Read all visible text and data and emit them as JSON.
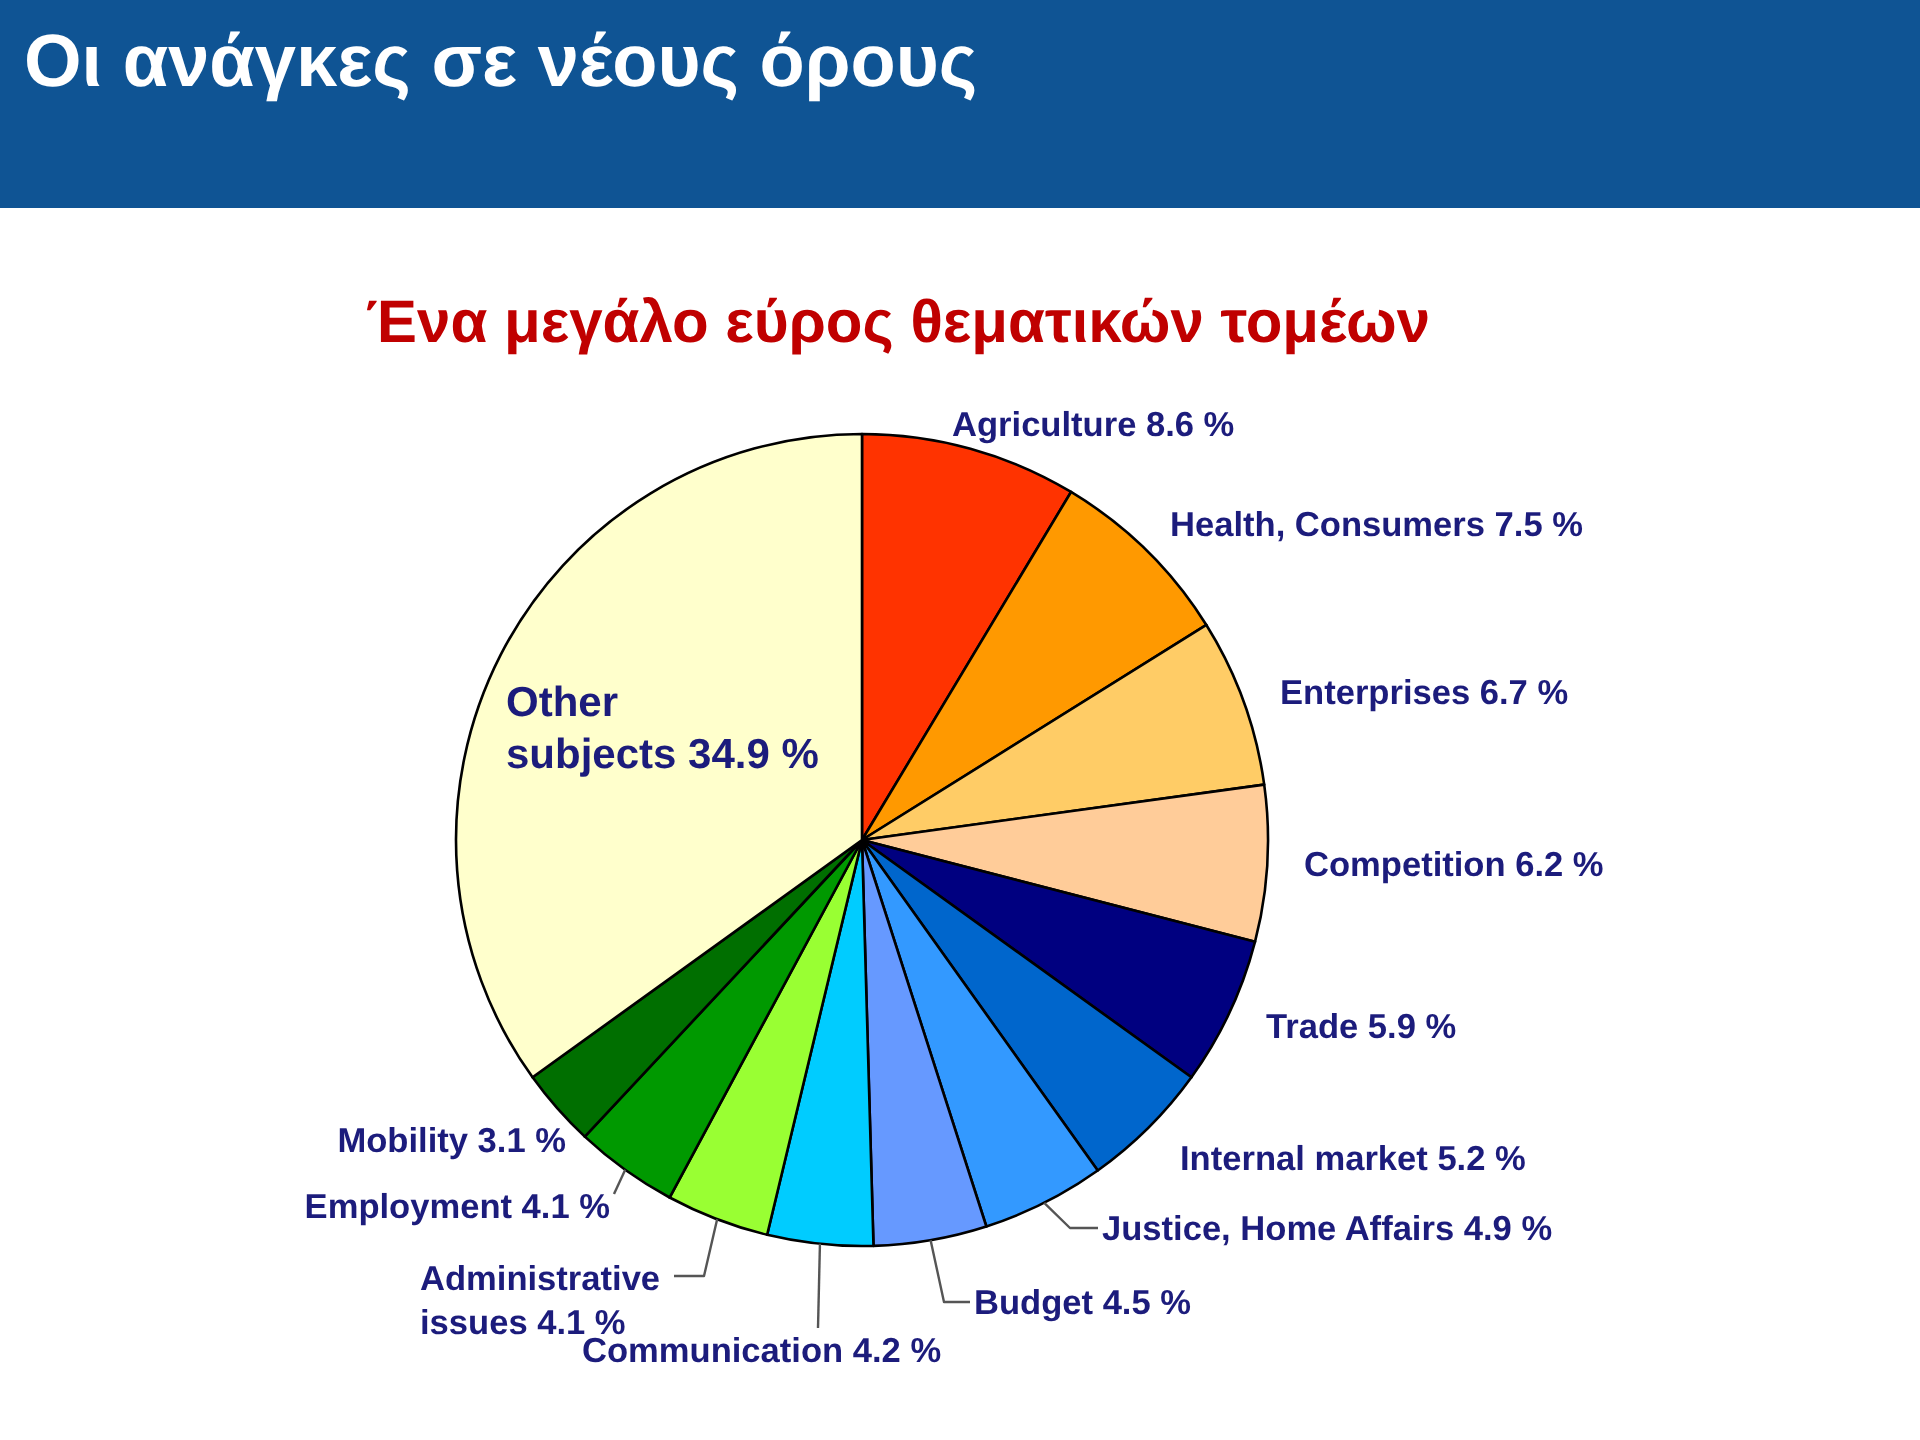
{
  "chart_data": {
    "type": "pie",
    "title": "Οι ανάγκες σε νέους όρους",
    "subtitle": "Ένα μεγάλο εύρος θεματικών τομέων",
    "categories": [
      "Agriculture",
      "Health, Consumers",
      "Enterprises",
      "Competition",
      "Trade",
      "Internal market",
      "Justice, Home Affairs",
      "Budget",
      "Communication",
      "Administrative issues",
      "Employment",
      "Mobility",
      "Other subjects"
    ],
    "values": [
      8.6,
      7.5,
      6.7,
      6.2,
      5.9,
      5.2,
      4.9,
      4.5,
      4.2,
      4.1,
      4.1,
      3.1,
      34.9
    ],
    "value_labels": [
      "8.6 %",
      "7.5 %",
      "6.7 %",
      "6.2 %",
      "5.9 %",
      "5.2 %",
      "4.9 %",
      "4.5 %",
      "4.2 %",
      "4.1 %",
      "4.1 %",
      "3.1 %",
      "34.9 %"
    ],
    "colors": [
      "#ff3300",
      "#ff9900",
      "#ffcc66",
      "#ffcc99",
      "#000080",
      "#0066cc",
      "#3399ff",
      "#6699ff",
      "#00ccff",
      "#99ff33",
      "#009900",
      "#006f00",
      "#ffffcc"
    ]
  }
}
